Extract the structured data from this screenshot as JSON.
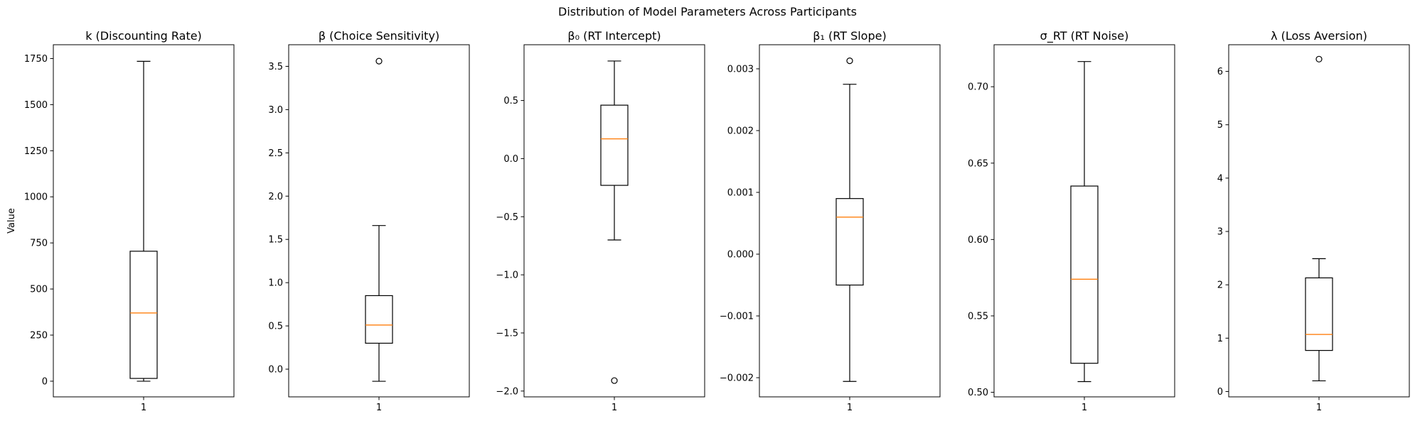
{
  "figure": {
    "title": "Distribution of Model Parameters Across Participants",
    "shared_ylabel": "Value"
  },
  "colors": {
    "box": "#000000",
    "median": "#ff7f0e",
    "background": "#ffffff"
  },
  "chart_data": [
    {
      "type": "box",
      "title": "k (Discounting Rate)",
      "xlabel": "",
      "ylabel": "Value",
      "x_tick_labels": [
        "1"
      ],
      "ylim": [
        -85,
        1825
      ],
      "yticks": [
        0,
        250,
        500,
        750,
        1000,
        1250,
        1500,
        1750
      ],
      "ytick_labels": [
        "0",
        "250",
        "500",
        "750",
        "1000",
        "1250",
        "1500",
        "1750"
      ],
      "boxes": [
        {
          "label": "1",
          "whisker_low": 0,
          "q1": 15,
          "median": 370,
          "q3": 705,
          "whisker_high": 1735,
          "outliers": []
        }
      ]
    },
    {
      "type": "box",
      "title": "β (Choice Sensitivity)",
      "xlabel": "",
      "ylabel": "",
      "x_tick_labels": [
        "1"
      ],
      "ylim": [
        -0.32,
        3.75
      ],
      "yticks": [
        0.0,
        0.5,
        1.0,
        1.5,
        2.0,
        2.5,
        3.0,
        3.5
      ],
      "ytick_labels": [
        "0.0",
        "0.5",
        "1.0",
        "1.5",
        "2.0",
        "2.5",
        "3.0",
        "3.5"
      ],
      "boxes": [
        {
          "label": "1",
          "whisker_low": -0.14,
          "q1": 0.3,
          "median": 0.51,
          "q3": 0.85,
          "whisker_high": 1.66,
          "outliers": [
            3.56
          ]
        }
      ]
    },
    {
      "type": "box",
      "title": "β₀ (RT Intercept)",
      "xlabel": "",
      "ylabel": "",
      "x_tick_labels": [
        "1"
      ],
      "ylim": [
        -2.05,
        0.98
      ],
      "yticks": [
        -2.0,
        -1.5,
        -1.0,
        -0.5,
        0.0,
        0.5
      ],
      "ytick_labels": [
        "−2.0",
        "−1.5",
        "−1.0",
        "−0.5",
        "0.0",
        "0.5"
      ],
      "boxes": [
        {
          "label": "1",
          "whisker_low": -0.7,
          "q1": -0.23,
          "median": 0.17,
          "q3": 0.46,
          "whisker_high": 0.84,
          "outliers": [
            -1.91
          ]
        }
      ]
    },
    {
      "type": "box",
      "title": "β₁ (RT Slope)",
      "xlabel": "",
      "ylabel": "",
      "x_tick_labels": [
        "1"
      ],
      "ylim": [
        -0.00231,
        0.00339
      ],
      "yticks": [
        -0.002,
        -0.001,
        0.0,
        0.001,
        0.002,
        0.003
      ],
      "ytick_labels": [
        "−0.002",
        "−0.001",
        "0.000",
        "0.001",
        "0.002",
        "0.003"
      ],
      "boxes": [
        {
          "label": "1",
          "whisker_low": -0.00206,
          "q1": -0.0005,
          "median": 0.0006,
          "q3": 0.0009,
          "whisker_high": 0.00275,
          "outliers": [
            0.00313
          ]
        }
      ]
    },
    {
      "type": "box",
      "title": "σ_RT (RT Noise)",
      "xlabel": "",
      "ylabel": "",
      "x_tick_labels": [
        "1"
      ],
      "ylim": [
        0.497,
        0.7275
      ],
      "yticks": [
        0.5,
        0.55,
        0.6,
        0.65,
        0.7
      ],
      "ytick_labels": [
        "0.50",
        "0.55",
        "0.60",
        "0.65",
        "0.70"
      ],
      "boxes": [
        {
          "label": "1",
          "whisker_low": 0.507,
          "q1": 0.519,
          "median": 0.574,
          "q3": 0.635,
          "whisker_high": 0.7165,
          "outliers": []
        }
      ]
    },
    {
      "type": "box",
      "title": "λ (Loss Aversion)",
      "xlabel": "",
      "ylabel": "",
      "x_tick_labels": [
        "1"
      ],
      "ylim": [
        -0.1,
        6.5
      ],
      "yticks": [
        0,
        1,
        2,
        3,
        4,
        5,
        6
      ],
      "ytick_labels": [
        "0",
        "1",
        "2",
        "3",
        "4",
        "5",
        "6"
      ],
      "boxes": [
        {
          "label": "1",
          "whisker_low": 0.2,
          "q1": 0.77,
          "median": 1.07,
          "q3": 2.13,
          "whisker_high": 2.49,
          "outliers": [
            6.23
          ]
        }
      ]
    }
  ]
}
